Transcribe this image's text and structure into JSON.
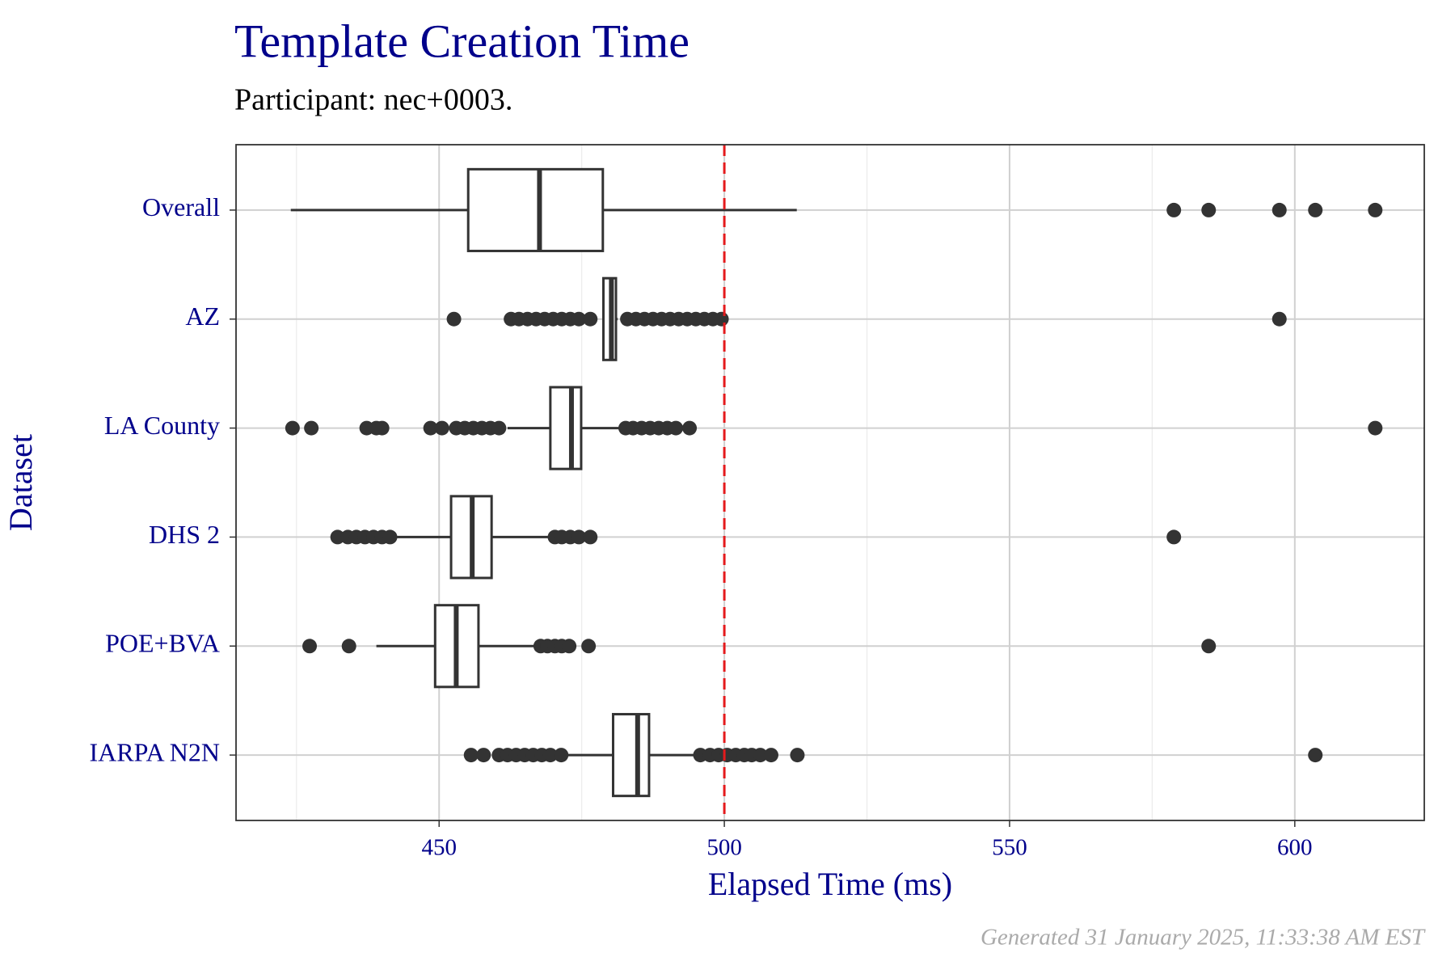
{
  "chart_data": {
    "type": "boxplot",
    "title": "Template Creation Time",
    "subtitle": "Participant: nec+0003.",
    "x_label": "Elapsed Time (ms)",
    "y_label": "Dataset",
    "caption": "Generated 31 January 2025, 11:33:38 AM EST",
    "xlim": [
      414.4,
      622.7
    ],
    "xticks": [
      450,
      500,
      550,
      600
    ],
    "xminor": [
      425,
      475,
      525,
      575
    ],
    "grid": true,
    "box_color": "#333333",
    "reference_line": {
      "value": 500,
      "color": "#e41a1c"
    },
    "categories": [
      "Overall",
      "AZ",
      "LA County",
      "DHS 2",
      "POE+BVA",
      "IARPA N2N"
    ],
    "series": [
      {
        "whisker_low": 424,
        "q1": 455.1,
        "median": 467.6,
        "q3": 478.7,
        "whisker_high": 512.7,
        "outliers": [
          578.8,
          584.9,
          597.3,
          603.6,
          614.1
        ]
      },
      {
        "whisker_low": 478.7,
        "q1": 478.8,
        "median": 480.2,
        "q3": 481.0,
        "whisker_high": 481.3,
        "outliers": [
          452.6,
          462.6,
          464,
          465.5,
          467,
          468.5,
          470,
          471.5,
          473,
          474.5,
          476.5,
          483,
          484.5,
          486,
          487.5,
          489,
          490.5,
          492,
          493.5,
          495,
          496.5,
          498,
          499.5,
          597.3
        ]
      },
      {
        "whisker_low": 462,
        "q1": 469.5,
        "median": 473.2,
        "q3": 474.9,
        "whisker_high": 481.8,
        "outliers": [
          424.3,
          427.6,
          437.3,
          439,
          440,
          448.5,
          450.5,
          453,
          454.5,
          456,
          457.5,
          459,
          460.5,
          482.7,
          484,
          485.5,
          487,
          488.5,
          490,
          491.5,
          493.9,
          614.1
        ]
      },
      {
        "whisker_low": 441.4,
        "q1": 452.1,
        "median": 455.8,
        "q3": 459.2,
        "whisker_high": 469.5,
        "outliers": [
          432.2,
          434,
          435.5,
          437,
          438.5,
          440,
          441.4,
          470.3,
          471.5,
          473,
          474.5,
          476.5,
          578.8
        ]
      },
      {
        "whisker_low": 439,
        "q1": 449.3,
        "median": 453,
        "q3": 456.9,
        "whisker_high": 467,
        "outliers": [
          427.3,
          434.2,
          467.8,
          469,
          470.3,
          471.5,
          472.8,
          476.2,
          584.9
        ]
      },
      {
        "whisker_low": 471.9,
        "q1": 480.5,
        "median": 484.8,
        "q3": 486.8,
        "whisker_high": 495.8,
        "outliers": [
          455.6,
          457.8,
          460.5,
          462,
          463.5,
          465,
          466.5,
          468,
          469.5,
          471.4,
          495.8,
          497.5,
          499,
          500.5,
          502,
          503.5,
          504.8,
          506.3,
          508.2,
          512.8,
          603.6
        ]
      }
    ]
  }
}
